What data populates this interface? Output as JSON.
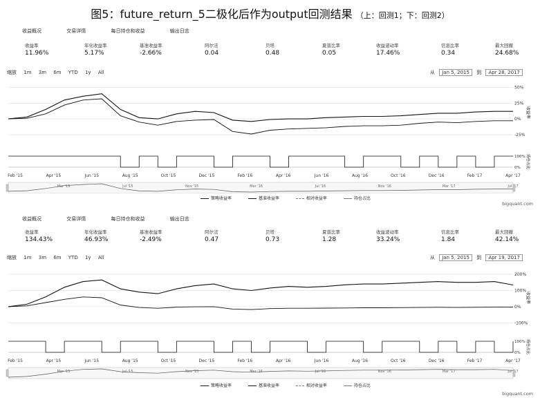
{
  "figure": {
    "title": "图5：future_return_5二极化后作为output回测结果",
    "subtitle": "（上：回测1；下：回测2）"
  },
  "panels": [
    {
      "tabs": [
        "收益概况",
        "交易详情",
        "每日持仓和收益",
        "输出日志"
      ],
      "metrics": [
        {
          "label": "收益率",
          "value": "11.96%"
        },
        {
          "label": "年化收益率",
          "value": "5.17%"
        },
        {
          "label": "基准收益率",
          "value": "-2.66%"
        },
        {
          "label": "阿尔法",
          "value": "0.04"
        },
        {
          "label": "贝塔",
          "value": "0.48"
        },
        {
          "label": "夏普比率",
          "value": "0.05"
        },
        {
          "label": "收益波动率",
          "value": "17.46%"
        },
        {
          "label": "信息比率",
          "value": "0.34"
        },
        {
          "label": "最大回撤",
          "value": "24.68%"
        }
      ],
      "range_buttons": [
        "缩放",
        "1m",
        "3m",
        "6m",
        "YTD",
        "1y",
        "All"
      ],
      "date_from_label": "从",
      "date_from": "Jan 5, 2015",
      "date_to_label": "到",
      "date_to": "Apr 28, 2017",
      "right_axis_label": "收益率",
      "position_axis_label": "持仓占比",
      "credit": "bigquant.com"
    },
    {
      "tabs": [
        "收益概况",
        "交易详情",
        "每日持仓和收益",
        "输出日志"
      ],
      "metrics": [
        {
          "label": "收益率",
          "value": "134.43%"
        },
        {
          "label": "年化收益率",
          "value": "46.93%"
        },
        {
          "label": "基准收益率",
          "value": "-2.49%"
        },
        {
          "label": "阿尔法",
          "value": "0.47"
        },
        {
          "label": "贝塔",
          "value": "0.73"
        },
        {
          "label": "夏普比率",
          "value": "1.28"
        },
        {
          "label": "收益波动率",
          "value": "33.24%"
        },
        {
          "label": "信息比率",
          "value": "1.84"
        },
        {
          "label": "最大回撤",
          "value": "42.14%"
        }
      ],
      "range_buttons": [
        "缩放",
        "1m",
        "3m",
        "6m",
        "YTD",
        "1y",
        "All"
      ],
      "date_from_label": "从",
      "date_from": "Jan 5, 2015",
      "date_to_label": "到",
      "date_to": "Apr 19, 2017",
      "right_axis_label": "收益率",
      "position_axis_label": "持仓占比",
      "credit": "bigquant.com"
    }
  ],
  "chart_data": [
    {
      "type": "line",
      "x_ticks": [
        "Feb '15",
        "Apr '15",
        "Jun '15",
        "Aug '15",
        "Oct '15",
        "Dec '15",
        "Feb '16",
        "Apr '16",
        "Jun '16",
        "Aug '16",
        "Oct '16",
        "Dec '16",
        "Feb '17",
        "Apr '17"
      ],
      "nav_ticks": [
        "Mar '15",
        "Jul '15",
        "Nov '15",
        "Mar '16",
        "Jul '16",
        "Nov '16",
        "Mar '17",
        "Jul '17"
      ],
      "y_ticks": [
        "50%",
        "25%",
        "0%",
        "-25%"
      ],
      "y_range": [
        -35,
        55
      ],
      "position_ticks": [
        "100%",
        "0%"
      ],
      "x": [
        "2015-01",
        "2015-02",
        "2015-03",
        "2015-04",
        "2015-05",
        "2015-06",
        "2015-07",
        "2015-08",
        "2015-09",
        "2015-10",
        "2015-11",
        "2015-12",
        "2016-01",
        "2016-02",
        "2016-03",
        "2016-04",
        "2016-05",
        "2016-06",
        "2016-07",
        "2016-08",
        "2016-09",
        "2016-10",
        "2016-11",
        "2016-12",
        "2017-01",
        "2017-02",
        "2017-03",
        "2017-04"
      ],
      "series": [
        {
          "name": "策略收益率",
          "values": [
            0,
            3,
            15,
            30,
            36,
            40,
            15,
            2,
            0,
            8,
            12,
            10,
            -2,
            -4,
            -1,
            0,
            0,
            2,
            3,
            4,
            4,
            5,
            7,
            9,
            9,
            11,
            12,
            12
          ]
        },
        {
          "name": "基准收益率",
          "values": [
            0,
            1,
            8,
            22,
            30,
            32,
            5,
            -5,
            -10,
            -4,
            -2,
            -1,
            -20,
            -24,
            -18,
            -16,
            -15,
            -14,
            -12,
            -11,
            -11,
            -10,
            -7,
            -5,
            -6,
            -4,
            -3,
            -3
          ]
        }
      ],
      "position": [
        100,
        100,
        100,
        100,
        100,
        100,
        0,
        100,
        0,
        100,
        100,
        0,
        100,
        100,
        0,
        100,
        100,
        100,
        0,
        100,
        100,
        0,
        100,
        0,
        100,
        0,
        100,
        100
      ],
      "legend": [
        "策略收益率",
        "基准收益率",
        "相对收益率",
        "持仓占比"
      ]
    },
    {
      "type": "line",
      "x_ticks": [
        "Feb '15",
        "Apr '15",
        "Jun '15",
        "Aug '15",
        "Oct '15",
        "Dec '15",
        "Feb '16",
        "Apr '16",
        "Jun '16",
        "Aug '16",
        "Oct '16",
        "Dec '16",
        "Feb '17",
        "Apr '17"
      ],
      "nav_ticks": [
        "Mar '15",
        "Jul '15",
        "Nov '15",
        "Mar '16",
        "Jul '16",
        "Nov '16",
        "Mar '17",
        "Jul '17"
      ],
      "y_ticks": [
        "200%",
        "100%",
        "0%",
        "-100%"
      ],
      "y_range": [
        -120,
        230
      ],
      "position_ticks": [
        "100%",
        "0%"
      ],
      "x": [
        "2015-01",
        "2015-02",
        "2015-03",
        "2015-04",
        "2015-05",
        "2015-06",
        "2015-07",
        "2015-08",
        "2015-09",
        "2015-10",
        "2015-11",
        "2015-12",
        "2016-01",
        "2016-02",
        "2016-03",
        "2016-04",
        "2016-05",
        "2016-06",
        "2016-07",
        "2016-08",
        "2016-09",
        "2016-10",
        "2016-11",
        "2016-12",
        "2017-01",
        "2017-02",
        "2017-03",
        "2017-04"
      ],
      "series": [
        {
          "name": "策略收益率",
          "values": [
            0,
            15,
            60,
            120,
            155,
            165,
            110,
            90,
            80,
            110,
            130,
            140,
            110,
            100,
            115,
            125,
            120,
            125,
            135,
            140,
            140,
            145,
            150,
            155,
            150,
            150,
            155,
            134
          ]
        },
        {
          "name": "基准收益率",
          "values": [
            0,
            5,
            25,
            45,
            60,
            55,
            10,
            -5,
            -10,
            -3,
            -1,
            0,
            -15,
            -18,
            -12,
            -10,
            -10,
            -9,
            -8,
            -7,
            -7,
            -6,
            -5,
            -4,
            -5,
            -4,
            -3,
            -2
          ]
        }
      ],
      "position": [
        100,
        100,
        0,
        100,
        100,
        0,
        100,
        100,
        0,
        100,
        100,
        0,
        100,
        0,
        100,
        100,
        0,
        100,
        100,
        0,
        100,
        100,
        0,
        100,
        0,
        100,
        0,
        100
      ],
      "legend": [
        "策略收益率",
        "基准收益率",
        "相对收益率",
        "持仓占比"
      ]
    }
  ]
}
